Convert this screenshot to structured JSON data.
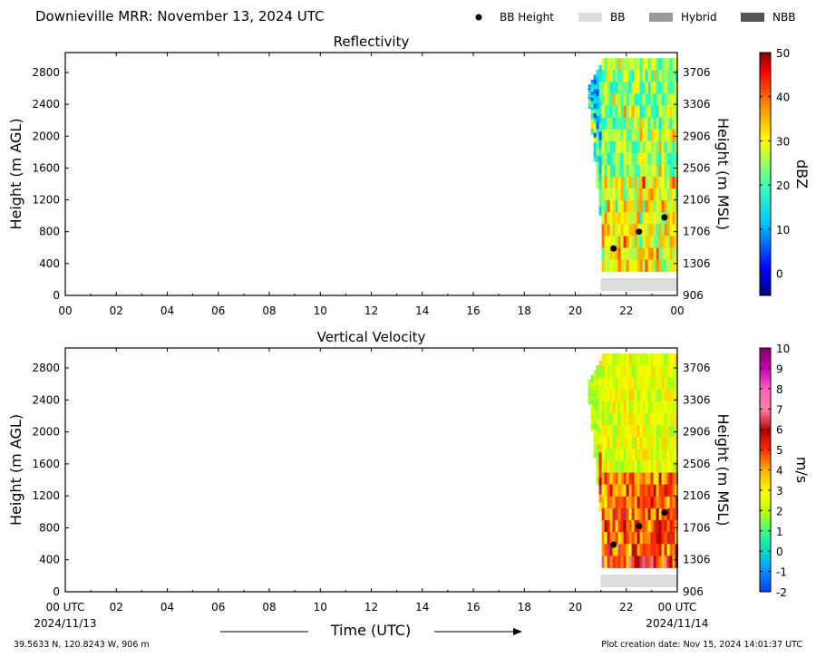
{
  "header": {
    "title": "Downieville MRR:  November 13, 2024 UTC",
    "legend": [
      {
        "label": "BB Height",
        "kind": "dot",
        "color": "#000000"
      },
      {
        "label": "BB",
        "kind": "box",
        "color": "#dcdcdc"
      },
      {
        "label": "Hybrid",
        "kind": "box",
        "color": "#999999"
      },
      {
        "label": "NBB",
        "kind": "box",
        "color": "#555555"
      }
    ]
  },
  "footer": {
    "location": "39.5633 N, 120.8243 W, 906 m",
    "creation_date": "Plot creation date: Nov 15, 2024 14:01:37 UTC",
    "start_date": "2024/11/13",
    "end_date": "2024/11/14"
  },
  "chart_data": [
    {
      "type": "heatmap",
      "title": "Reflectivity",
      "xlabel": "",
      "ylabel": "Height (m AGL)",
      "y2label": "Height (m MSL)",
      "colorbar_label": "dBZ",
      "x_ticks": [
        "00",
        "02",
        "04",
        "06",
        "08",
        "10",
        "12",
        "14",
        "16",
        "18",
        "20",
        "22",
        "00"
      ],
      "xlim_hours": [
        0,
        24
      ],
      "ylim": [
        0,
        3050
      ],
      "y_ticks": [
        0,
        400,
        800,
        1200,
        1600,
        2000,
        2400,
        2800
      ],
      "y2_ticks": [
        906,
        1306,
        1706,
        2106,
        2506,
        2906,
        3306,
        3706
      ],
      "colorbar_range": [
        -5,
        50
      ],
      "colorbar_ticks": [
        0,
        10,
        20,
        30,
        40,
        50
      ],
      "data_start_hour": 20.5,
      "bb_height_points": [
        {
          "hour": 21.5,
          "height": 590
        },
        {
          "hour": 22.5,
          "height": 800
        },
        {
          "hour": 23.5,
          "height": 980
        }
      ],
      "bb_type_bar": {
        "start_hour": 21.0,
        "end_hour": 24.0,
        "type": "BB"
      }
    },
    {
      "type": "heatmap",
      "title": "Vertical Velocity",
      "xlabel": "Time (UTC)",
      "ylabel": "Height (m AGL)",
      "y2label": "Height (m MSL)",
      "colorbar_label": "m/s",
      "x_ticks": [
        "00 UTC",
        "02",
        "04",
        "06",
        "08",
        "10",
        "12",
        "14",
        "16",
        "18",
        "20",
        "22",
        "00 UTC"
      ],
      "xlim_hours": [
        0,
        24
      ],
      "ylim": [
        0,
        3050
      ],
      "y_ticks": [
        0,
        400,
        800,
        1200,
        1600,
        2000,
        2400,
        2800
      ],
      "y2_ticks": [
        906,
        1306,
        1706,
        2106,
        2506,
        2906,
        3306,
        3706
      ],
      "colorbar_range": [
        -2,
        10
      ],
      "colorbar_ticks": [
        -2,
        -1,
        0,
        1,
        2,
        3,
        4,
        5,
        6,
        7,
        8,
        9,
        10
      ],
      "data_start_hour": 20.5,
      "bb_height_points": [
        {
          "hour": 21.5,
          "height": 590
        },
        {
          "hour": 22.5,
          "height": 820
        },
        {
          "hour": 23.5,
          "height": 990
        }
      ],
      "bb_type_bar": {
        "start_hour": 21.0,
        "end_hour": 24.0,
        "type": "BB"
      }
    }
  ]
}
